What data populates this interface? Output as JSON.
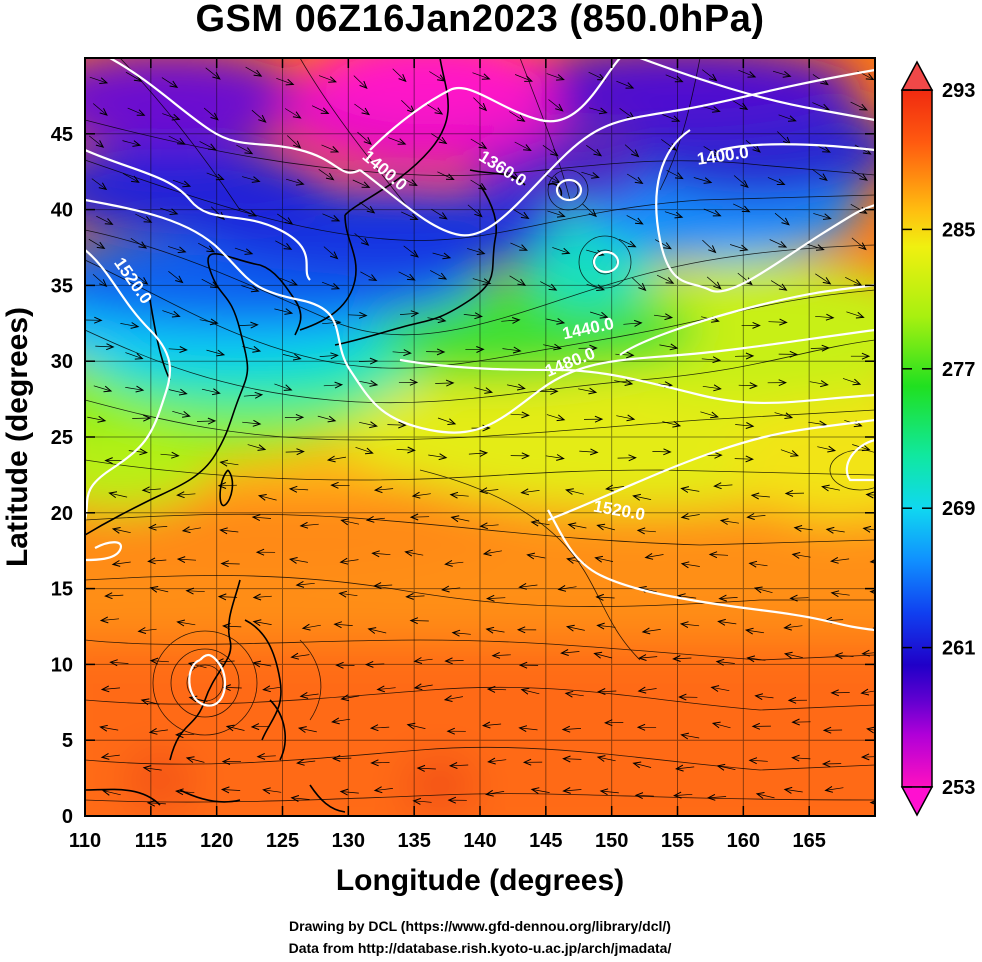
{
  "title": "GSM 06Z16Jan2023 (850.0hPa)",
  "xlabel": "Longitude (degrees)",
  "ylabel": "Latitude  (degrees)",
  "credits": {
    "line1": "Drawing by DCL (https://www.gfd-dennou.org/library/dcl/)",
    "line2": "Data from http://database.rish.kyoto-u.ac.jp/arch/jmadata/"
  },
  "map": {
    "lon_range": [
      110,
      170
    ],
    "lat_range": [
      0,
      50
    ],
    "x_ticks": [
      110,
      115,
      120,
      125,
      130,
      135,
      140,
      145,
      150,
      155,
      160,
      165
    ],
    "y_ticks": [
      0,
      5,
      10,
      15,
      20,
      25,
      30,
      35,
      40,
      45
    ],
    "grid": true
  },
  "colorbar": {
    "min": 253,
    "max": 293,
    "labels": [
      "293",
      "285",
      "277",
      "269",
      "261",
      "253"
    ],
    "extend": "both",
    "stops": [
      {
        "v": 253,
        "c": "#ff10c0"
      },
      {
        "v": 256,
        "c": "#b000d8"
      },
      {
        "v": 258,
        "c": "#6000d0"
      },
      {
        "v": 260,
        "c": "#2000c8"
      },
      {
        "v": 263,
        "c": "#1040f0"
      },
      {
        "v": 266,
        "c": "#1090ff"
      },
      {
        "v": 269,
        "c": "#10d8f0"
      },
      {
        "v": 272,
        "c": "#10e8a0"
      },
      {
        "v": 276,
        "c": "#20e020"
      },
      {
        "v": 280,
        "c": "#a8f010"
      },
      {
        "v": 284,
        "c": "#f0f010"
      },
      {
        "v": 286,
        "c": "#ffc010"
      },
      {
        "v": 288,
        "c": "#ff8c10"
      },
      {
        "v": 290,
        "c": "#ff5a10"
      },
      {
        "v": 293,
        "c": "#f02a10"
      }
    ]
  },
  "contours": {
    "color": "#ffffff",
    "labels": [
      {
        "text": "1400.0",
        "lon": 132.5,
        "lat": 42.3,
        "angle": 40
      },
      {
        "text": "1360.0",
        "lon": 141.5,
        "lat": 42.4,
        "angle": 32
      },
      {
        "text": "1400.0",
        "lon": 158.5,
        "lat": 43.2,
        "angle": -8
      },
      {
        "text": "1520.0",
        "lon": 113.3,
        "lat": 35.1,
        "angle": 55
      },
      {
        "text": "1440.0",
        "lon": 148.3,
        "lat": 31.8,
        "angle": -12
      },
      {
        "text": "1480.0",
        "lon": 147.0,
        "lat": 29.6,
        "angle": -22
      },
      {
        "text": "1520.0",
        "lon": 150.5,
        "lat": 19.8,
        "angle": 10
      }
    ]
  }
}
